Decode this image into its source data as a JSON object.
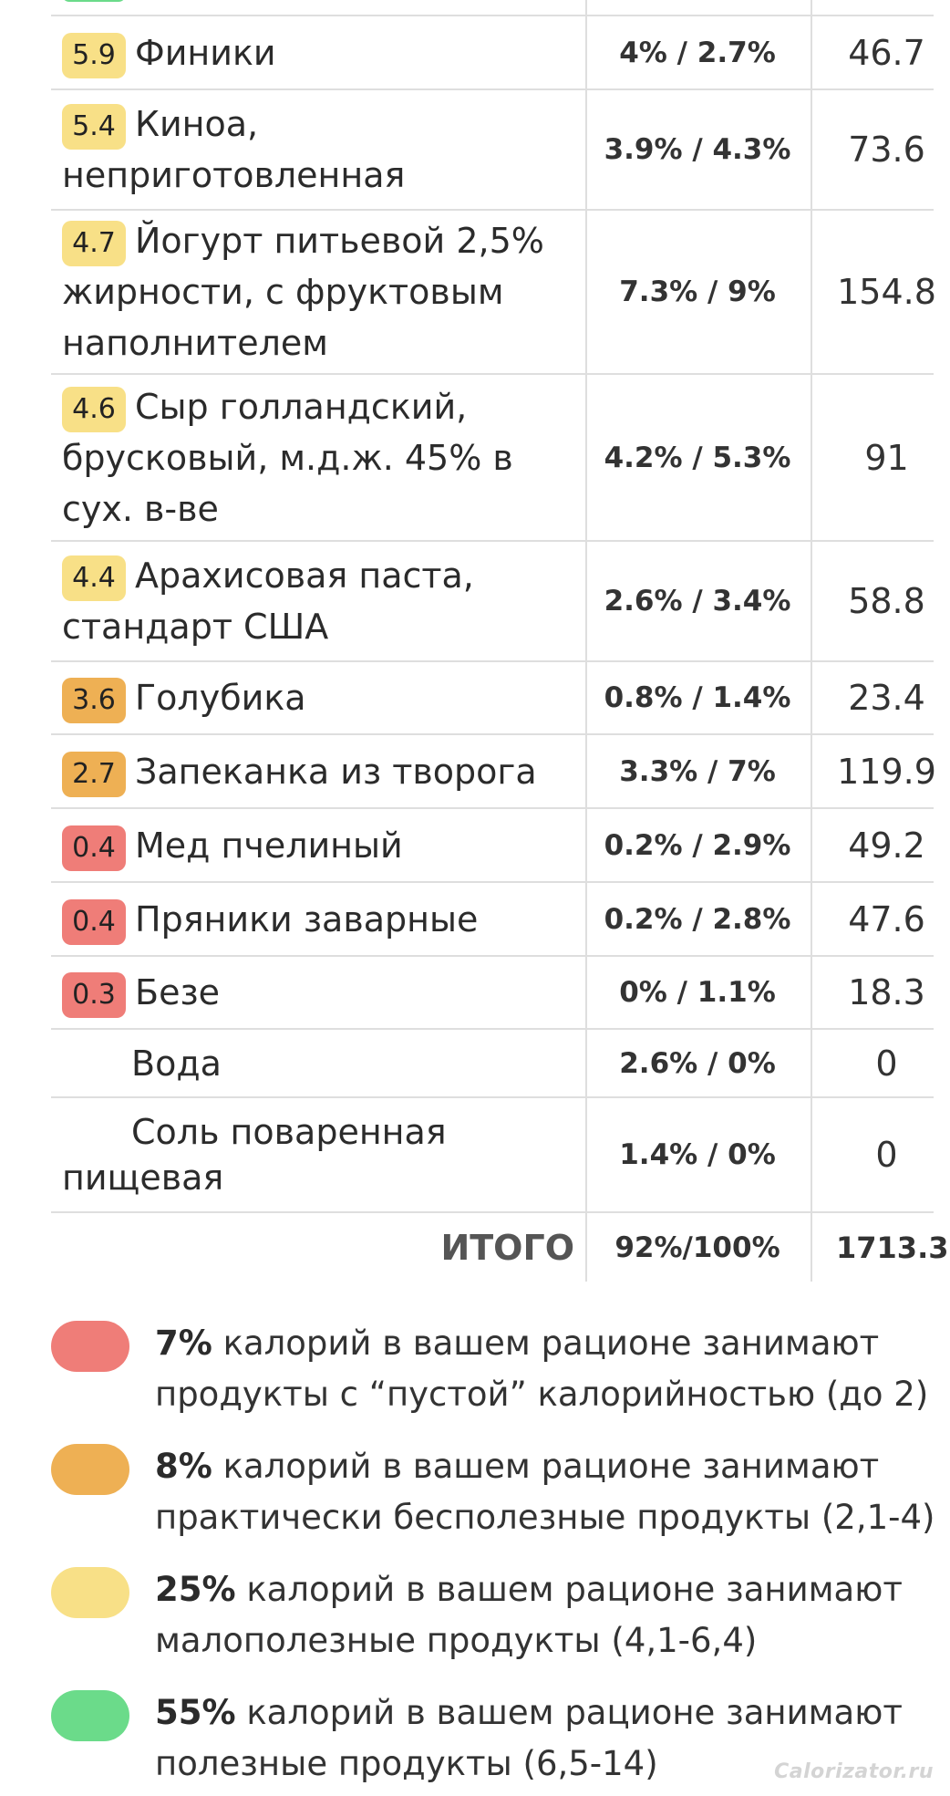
{
  "colors": {
    "red": "#ef7d78",
    "orange": "#eeb054",
    "yellow": "#f8e087",
    "green": "#6bdb8a",
    "grid": "#dedede"
  },
  "rows": [
    {
      "score": "5.9",
      "color": "yellow",
      "name": "Финики",
      "pct": "4% / 2.7%",
      "kcal": "46.7"
    },
    {
      "score": "5.4",
      "color": "yellow",
      "name": "Киноа, неприготовленная",
      "pct": "3.9% / 4.3%",
      "kcal": "73.6"
    },
    {
      "score": "4.7",
      "color": "yellow",
      "name": "Йогурт питьевой 2,5% жирности, с фруктовым наполнителем",
      "pct": "7.3% / 9%",
      "kcal": "154.8"
    },
    {
      "score": "4.6",
      "color": "yellow",
      "name": "Сыр голландский, брусковый, м.д.ж. 45% в сух. в-ве",
      "pct": "4.2% / 5.3%",
      "kcal": "91"
    },
    {
      "score": "4.4",
      "color": "yellow",
      "name": "Арахисовая паста, стандарт США",
      "pct": "2.6% / 3.4%",
      "kcal": "58.8"
    },
    {
      "score": "3.6",
      "color": "orange",
      "name": "Голубика",
      "pct": "0.8% / 1.4%",
      "kcal": "23.4"
    },
    {
      "score": "2.7",
      "color": "orange",
      "name": "Запеканка из творога",
      "pct": "3.3% / 7%",
      "kcal": "119.9"
    },
    {
      "score": "0.4",
      "color": "red",
      "name": "Мед пчелиный",
      "pct": "0.2% / 2.9%",
      "kcal": "49.2"
    },
    {
      "score": "0.4",
      "color": "red",
      "name": "Пряники заварные",
      "pct": "0.2% / 2.8%",
      "kcal": "47.6"
    },
    {
      "score": "0.3",
      "color": "red",
      "name": "Безе",
      "pct": "0% / 1.1%",
      "kcal": "18.3"
    },
    {
      "score": "",
      "color": "none",
      "name": "Вода",
      "pct": "2.6% / 0%",
      "kcal": "0"
    },
    {
      "score": "",
      "color": "none",
      "name": "Соль поваренная пищевая",
      "pct": "1.4% / 0%",
      "kcal": "0"
    }
  ],
  "total": {
    "label": "ИТОГО",
    "pct": "92%/100%",
    "kcal": "1713.3"
  },
  "legend": [
    {
      "color": "red",
      "percent": "7%",
      "text": " калорий в вашем рационе занимают продукты с “пустой” калорийностью (до 2)"
    },
    {
      "color": "orange",
      "percent": "8%",
      "text": " калорий в вашем рационе занимают практически бесполезные продукты (2,1-4)"
    },
    {
      "color": "yellow",
      "percent": "25%",
      "text": " калорий в вашем рационе занимают малополезные продукты (4,1-6,4)"
    },
    {
      "color": "green",
      "percent": "55%",
      "text": " калорий в вашем рационе занимают полезные продукты (6,5-14)"
    }
  ],
  "watermark": "Calorizator.ru"
}
